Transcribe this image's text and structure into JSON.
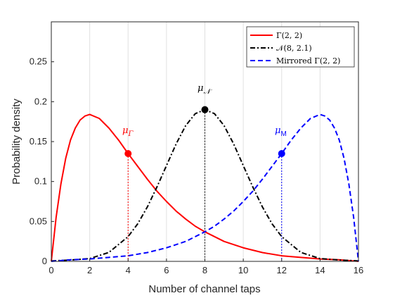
{
  "chart_data": {
    "type": "line",
    "xlabel": "Number of channel taps",
    "ylabel": "Probability density",
    "xlim": [
      0,
      16
    ],
    "ylim": [
      0,
      0.3
    ],
    "xticks": [
      "0",
      "2",
      "4",
      "6",
      "8",
      "10",
      "12",
      "14",
      "16"
    ],
    "yticks": [
      "0",
      "0.05",
      "0.1",
      "0.15",
      "0.2",
      "0.25"
    ],
    "grid": "x-only",
    "legend_position": "top-right",
    "series": [
      {
        "name": "Γ(2, 2)",
        "color": "#ff0000",
        "style": "solid",
        "x": [
          0,
          0.25,
          0.5,
          0.75,
          1,
          1.25,
          1.5,
          1.75,
          2,
          2.5,
          3,
          3.5,
          4,
          4.5,
          5,
          5.5,
          6,
          6.5,
          7,
          7.5,
          8,
          9,
          10,
          11,
          12,
          13,
          14,
          15,
          16
        ],
        "y": [
          0,
          0.055,
          0.097,
          0.129,
          0.152,
          0.167,
          0.177,
          0.182,
          0.184,
          0.179,
          0.167,
          0.152,
          0.135,
          0.119,
          0.103,
          0.088,
          0.075,
          0.063,
          0.053,
          0.044,
          0.037,
          0.025,
          0.017,
          0.011,
          0.007,
          0.005,
          0.003,
          0.002,
          0
        ]
      },
      {
        "name": "𝒩(8, 2.1)",
        "color": "#000000",
        "style": "dashdot",
        "x": [
          0,
          1,
          2,
          3,
          4,
          4.5,
          5,
          5.5,
          6,
          6.5,
          7,
          7.5,
          8,
          8.5,
          9,
          9.5,
          10,
          10.5,
          11,
          11.5,
          12,
          13,
          14,
          15,
          16
        ],
        "y": [
          0.0006,
          0.0017,
          0.0035,
          0.0112,
          0.031,
          0.047,
          0.068,
          0.093,
          0.12,
          0.147,
          0.17,
          0.185,
          0.19,
          0.185,
          0.17,
          0.147,
          0.12,
          0.093,
          0.068,
          0.047,
          0.031,
          0.0112,
          0.0035,
          0.0017,
          0.0006
        ]
      },
      {
        "name": "Mirrored Γ(2, 2)",
        "color": "#0000ff",
        "style": "dashed",
        "x": [
          0,
          1,
          2,
          3,
          4,
          5,
          6,
          7,
          7.5,
          8,
          8.5,
          9,
          9.5,
          10,
          10.5,
          11,
          11.5,
          12,
          12.5,
          13,
          13.5,
          14,
          14.25,
          14.5,
          14.75,
          15,
          15.25,
          15.5,
          15.75,
          16
        ],
        "y": [
          0,
          0.002,
          0.003,
          0.005,
          0.007,
          0.011,
          0.017,
          0.025,
          0.031,
          0.037,
          0.044,
          0.053,
          0.063,
          0.075,
          0.088,
          0.103,
          0.119,
          0.135,
          0.152,
          0.167,
          0.179,
          0.184,
          0.182,
          0.177,
          0.167,
          0.152,
          0.129,
          0.097,
          0.055,
          0
        ]
      }
    ],
    "markers": [
      {
        "label": "μΓ",
        "x": 4,
        "y": 0.135,
        "color": "#ff0000"
      },
      {
        "label": "μ𝒩",
        "x": 8,
        "y": 0.19,
        "color": "#000000"
      },
      {
        "label": "μM",
        "x": 12,
        "y": 0.135,
        "color": "#0000ff"
      }
    ]
  }
}
